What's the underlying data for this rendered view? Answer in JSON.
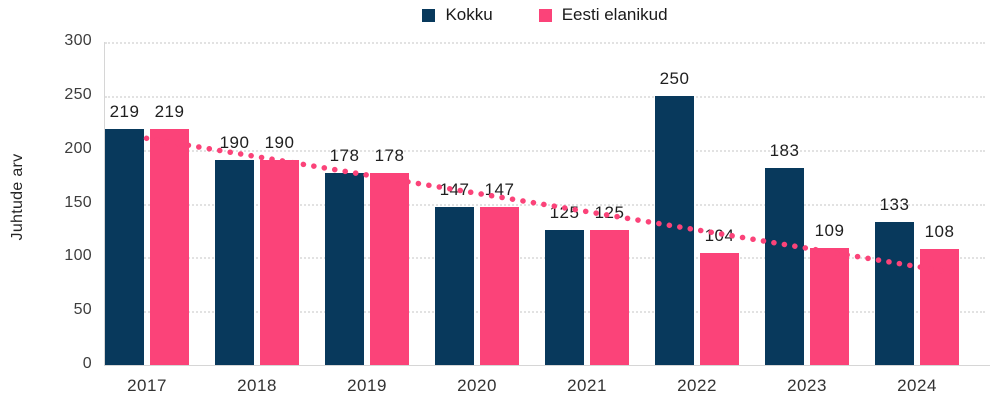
{
  "chart_data": {
    "type": "bar",
    "title": "",
    "xlabel": "",
    "ylabel": "Juhtude arv",
    "ylim": [
      0,
      300
    ],
    "yticks": [
      0,
      50,
      100,
      150,
      200,
      250,
      300
    ],
    "grid": "horizontal-dotted",
    "legend_position": "top-center",
    "categories": [
      "2017",
      "2018",
      "2019",
      "2020",
      "2021",
      "2022",
      "2023",
      "2024"
    ],
    "series": [
      {
        "name": "Kokku",
        "color": "#08395c",
        "values": [
          219,
          190,
          178,
          147,
          125,
          250,
          183,
          133
        ]
      },
      {
        "name": "Eesti elanikud",
        "color": "#fb4379",
        "values": [
          219,
          190,
          178,
          147,
          125,
          104,
          109,
          108
        ]
      }
    ],
    "trendline": {
      "series": "Eesti elanikud",
      "type": "linear",
      "style": "dotted",
      "color": "#fb4379",
      "start_value": 207,
      "end_value": 88
    },
    "colors": {
      "grid": "#e2e2e2",
      "axis": "#d6d6d6",
      "value_labels": "#1f1f1f",
      "tick_labels": "#3d3d3d"
    }
  }
}
